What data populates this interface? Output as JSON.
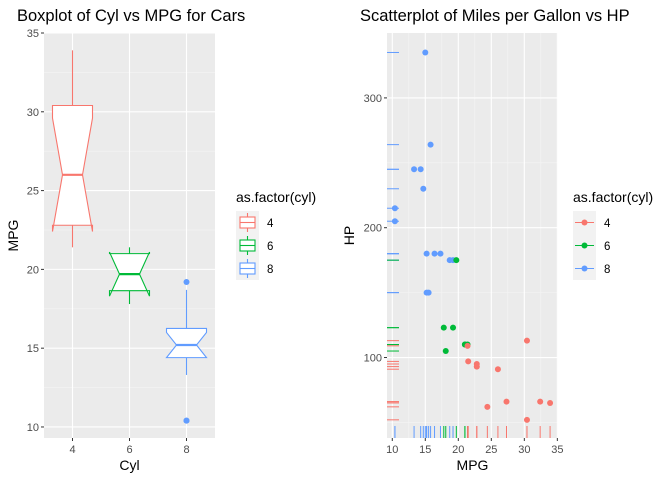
{
  "colors": {
    "4": "#F8766D",
    "6": "#00BA38",
    "8": "#619CFF",
    "panel": "#EBEBEB",
    "grid_major": "#FFFFFF",
    "grid_minor": "#F5F5F5",
    "legend_key": "#F2F2F2"
  },
  "chart_data": [
    {
      "type": "boxplot",
      "title": "Boxplot of Cyl vs MPG for Cars",
      "xlabel": "Cyl",
      "ylabel": "MPG",
      "xlim": [
        3,
        9
      ],
      "ylim": [
        9.3,
        35
      ],
      "x_ticks": [
        4,
        6,
        8
      ],
      "y_ticks": [
        10,
        15,
        20,
        25,
        30,
        35
      ],
      "notched": true,
      "legend": {
        "title": "as.factor(cyl)",
        "position": "right",
        "entries": [
          "4",
          "6",
          "8"
        ]
      },
      "groups": [
        {
          "cyl": 4,
          "label": "4",
          "lower_whisker": 21.4,
          "q1": 22.8,
          "median": 26.0,
          "q3": 30.4,
          "upper_whisker": 33.9,
          "notch_low": 22.4,
          "notch_high": 29.6,
          "outliers": []
        },
        {
          "cyl": 6,
          "label": "6",
          "lower_whisker": 17.8,
          "q1": 18.65,
          "median": 19.7,
          "q3": 21.0,
          "upper_whisker": 21.4,
          "notch_low": 18.3,
          "notch_high": 21.1,
          "outliers": []
        },
        {
          "cyl": 8,
          "label": "8",
          "lower_whisker": 13.3,
          "q1": 14.4,
          "median": 15.2,
          "q3": 16.25,
          "upper_whisker": 18.7,
          "notch_low": 14.4,
          "notch_high": 16.0,
          "outliers": [
            10.4,
            10.4,
            19.2
          ]
        }
      ]
    },
    {
      "type": "scatter",
      "title": "Scatterplot of Miles per Gallon vs HP",
      "xlabel": "MPG",
      "ylabel": "HP",
      "xlim": [
        9.2,
        35.1
      ],
      "ylim": [
        38,
        350
      ],
      "x_ticks": [
        10,
        15,
        20,
        25,
        30,
        35
      ],
      "y_ticks": [
        100,
        200,
        300
      ],
      "rug": true,
      "legend": {
        "title": "as.factor(cyl)",
        "position": "right",
        "entries": [
          "4",
          "6",
          "8"
        ]
      },
      "points": [
        {
          "mpg": 21.0,
          "hp": 110,
          "cyl": "6"
        },
        {
          "mpg": 21.0,
          "hp": 110,
          "cyl": "6"
        },
        {
          "mpg": 22.8,
          "hp": 93,
          "cyl": "4"
        },
        {
          "mpg": 21.4,
          "hp": 110,
          "cyl": "6"
        },
        {
          "mpg": 18.7,
          "hp": 175,
          "cyl": "8"
        },
        {
          "mpg": 18.1,
          "hp": 105,
          "cyl": "6"
        },
        {
          "mpg": 14.3,
          "hp": 245,
          "cyl": "8"
        },
        {
          "mpg": 24.4,
          "hp": 62,
          "cyl": "4"
        },
        {
          "mpg": 22.8,
          "hp": 95,
          "cyl": "4"
        },
        {
          "mpg": 19.2,
          "hp": 123,
          "cyl": "6"
        },
        {
          "mpg": 17.8,
          "hp": 123,
          "cyl": "6"
        },
        {
          "mpg": 16.4,
          "hp": 180,
          "cyl": "8"
        },
        {
          "mpg": 17.3,
          "hp": 180,
          "cyl": "8"
        },
        {
          "mpg": 15.2,
          "hp": 180,
          "cyl": "8"
        },
        {
          "mpg": 10.4,
          "hp": 205,
          "cyl": "8"
        },
        {
          "mpg": 10.4,
          "hp": 215,
          "cyl": "8"
        },
        {
          "mpg": 14.7,
          "hp": 230,
          "cyl": "8"
        },
        {
          "mpg": 32.4,
          "hp": 66,
          "cyl": "4"
        },
        {
          "mpg": 30.4,
          "hp": 52,
          "cyl": "4"
        },
        {
          "mpg": 33.9,
          "hp": 65,
          "cyl": "4"
        },
        {
          "mpg": 21.5,
          "hp": 97,
          "cyl": "4"
        },
        {
          "mpg": 15.5,
          "hp": 150,
          "cyl": "8"
        },
        {
          "mpg": 15.2,
          "hp": 150,
          "cyl": "8"
        },
        {
          "mpg": 13.3,
          "hp": 245,
          "cyl": "8"
        },
        {
          "mpg": 19.2,
          "hp": 175,
          "cyl": "8"
        },
        {
          "mpg": 27.3,
          "hp": 66,
          "cyl": "4"
        },
        {
          "mpg": 26.0,
          "hp": 91,
          "cyl": "4"
        },
        {
          "mpg": 30.4,
          "hp": 113,
          "cyl": "4"
        },
        {
          "mpg": 15.8,
          "hp": 264,
          "cyl": "8"
        },
        {
          "mpg": 19.7,
          "hp": 175,
          "cyl": "6"
        },
        {
          "mpg": 15.0,
          "hp": 335,
          "cyl": "8"
        },
        {
          "mpg": 21.4,
          "hp": 109,
          "cyl": "4"
        }
      ]
    }
  ]
}
